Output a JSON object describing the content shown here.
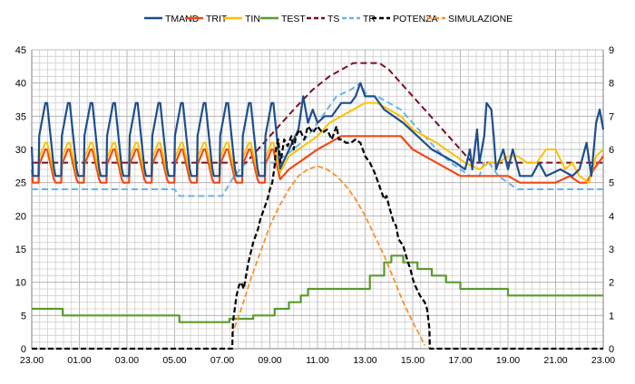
{
  "chart_data": {
    "type": "line",
    "x_ticks": [
      "23.00",
      "01.00",
      "03.00",
      "05.00",
      "07.00",
      "09.00",
      "11.00",
      "13.00",
      "15.00",
      "17.00",
      "19.00",
      "21.00",
      "23.00"
    ],
    "x_range_hours": [
      0,
      24
    ],
    "y_left": {
      "min": 0,
      "max": 45,
      "ticks": [
        "0",
        "5",
        "10",
        "15",
        "20",
        "25",
        "30",
        "35",
        "40",
        "45"
      ]
    },
    "y_right": {
      "min": 0,
      "max": 9,
      "ticks": [
        "0",
        "1",
        "2",
        "3",
        "4",
        "5",
        "6",
        "7",
        "8",
        "9"
      ]
    },
    "grid": true,
    "legend_position": "top",
    "series": [
      {
        "name": "TMAND",
        "color": "#1f4e8c",
        "dash": "none",
        "width": 2.2,
        "axis": "left",
        "style": "saw",
        "saw": {
          "lo": 26,
          "hi": 37,
          "cycle": 0.95,
          "to": 11.2
        },
        "points": [
          [
            11.2,
            33
          ],
          [
            11.4,
            38
          ],
          [
            11.6,
            34
          ],
          [
            11.8,
            36
          ],
          [
            12.0,
            34
          ],
          [
            12.3,
            35
          ],
          [
            12.6,
            35
          ],
          [
            13.0,
            37
          ],
          [
            13.4,
            37
          ],
          [
            13.6,
            38
          ],
          [
            13.8,
            40
          ],
          [
            14.0,
            38
          ],
          [
            14.4,
            38
          ],
          [
            14.8,
            36
          ],
          [
            15.2,
            35
          ],
          [
            15.6,
            34
          ],
          [
            16.2,
            32
          ],
          [
            16.8,
            30
          ],
          [
            17.3,
            29
          ],
          [
            17.8,
            28
          ],
          [
            18.2,
            27
          ],
          [
            18.4,
            30
          ],
          [
            18.5,
            27
          ],
          [
            18.7,
            33
          ],
          [
            18.8,
            28
          ],
          [
            19.0,
            32
          ],
          [
            19.1,
            37
          ],
          [
            19.3,
            36
          ],
          [
            19.4,
            32
          ],
          [
            19.5,
            27
          ],
          [
            19.8,
            30
          ],
          [
            20.0,
            27
          ],
          [
            20.2,
            30
          ],
          [
            20.5,
            26
          ],
          [
            21.0,
            26
          ],
          [
            21.3,
            28
          ],
          [
            21.6,
            26
          ],
          [
            22.2,
            27
          ],
          [
            22.7,
            26
          ],
          [
            23.0,
            27
          ],
          [
            23.3,
            31
          ],
          [
            23.5,
            26
          ],
          [
            23.7,
            34
          ],
          [
            23.85,
            36
          ],
          [
            24.0,
            33
          ]
        ]
      },
      {
        "name": "TRIT",
        "color": "#f04a17",
        "dash": "none",
        "width": 2.2,
        "axis": "left",
        "style": "saw",
        "saw": {
          "lo": 25,
          "hi": 30,
          "cycle": 0.95,
          "to": 10.8
        },
        "points": [
          [
            10.8,
            27
          ],
          [
            11.2,
            28
          ],
          [
            11.6,
            29
          ],
          [
            12.0,
            30
          ],
          [
            12.5,
            31
          ],
          [
            13.0,
            32
          ],
          [
            14.0,
            32
          ],
          [
            15.0,
            32
          ],
          [
            15.5,
            32
          ],
          [
            16.0,
            30
          ],
          [
            17.0,
            28
          ],
          [
            18.0,
            26
          ],
          [
            19.0,
            26
          ],
          [
            19.5,
            26
          ],
          [
            20.0,
            26
          ],
          [
            20.5,
            25
          ],
          [
            21.5,
            25
          ],
          [
            22.0,
            25
          ],
          [
            22.6,
            26
          ],
          [
            23.0,
            25
          ],
          [
            23.3,
            25
          ],
          [
            23.6,
            27
          ],
          [
            24.0,
            29
          ]
        ]
      },
      {
        "name": "TIN",
        "color": "#ffc000",
        "dash": "none",
        "width": 2,
        "axis": "left",
        "style": "saw",
        "saw": {
          "lo": 26,
          "hi": 31,
          "cycle": 0.95,
          "to": 10.8
        },
        "points": [
          [
            10.8,
            29
          ],
          [
            11.2,
            30
          ],
          [
            11.6,
            31
          ],
          [
            12.0,
            32
          ],
          [
            12.5,
            34
          ],
          [
            13.0,
            35
          ],
          [
            13.5,
            36
          ],
          [
            14.0,
            37
          ],
          [
            14.5,
            37
          ],
          [
            15.0,
            36
          ],
          [
            15.5,
            35
          ],
          [
            16.0,
            33
          ],
          [
            17.0,
            31
          ],
          [
            17.8,
            29
          ],
          [
            18.2,
            28
          ],
          [
            18.8,
            27
          ],
          [
            19.2,
            28
          ],
          [
            19.6,
            28
          ],
          [
            20.0,
            29
          ],
          [
            20.4,
            29
          ],
          [
            20.8,
            28
          ],
          [
            21.2,
            28
          ],
          [
            21.6,
            30
          ],
          [
            22.0,
            30
          ],
          [
            22.4,
            27
          ],
          [
            22.7,
            28
          ],
          [
            23.0,
            26
          ],
          [
            23.4,
            25
          ],
          [
            23.7,
            29
          ],
          [
            24.0,
            30
          ]
        ]
      },
      {
        "name": "TEST",
        "color": "#5b9a2f",
        "dash": "none",
        "width": 2.2,
        "axis": "left",
        "style": "step",
        "points": [
          [
            0,
            6
          ],
          [
            1.3,
            6
          ],
          [
            1.3,
            5
          ],
          [
            6.2,
            5
          ],
          [
            6.2,
            4
          ],
          [
            8.3,
            4
          ],
          [
            8.3,
            4.5
          ],
          [
            9.3,
            4.5
          ],
          [
            9.3,
            5
          ],
          [
            10.2,
            5
          ],
          [
            10.2,
            6
          ],
          [
            10.8,
            6
          ],
          [
            10.8,
            7
          ],
          [
            11.3,
            7
          ],
          [
            11.3,
            8
          ],
          [
            11.6,
            8
          ],
          [
            11.6,
            9
          ],
          [
            14.2,
            9
          ],
          [
            14.2,
            11
          ],
          [
            14.8,
            11
          ],
          [
            14.8,
            13
          ],
          [
            15.1,
            13
          ],
          [
            15.1,
            14
          ],
          [
            15.6,
            14
          ],
          [
            15.6,
            13
          ],
          [
            16.2,
            13
          ],
          [
            16.2,
            12
          ],
          [
            16.8,
            12
          ],
          [
            16.8,
            11
          ],
          [
            17.4,
            11
          ],
          [
            17.4,
            10
          ],
          [
            18.0,
            10
          ],
          [
            18.0,
            9
          ],
          [
            20.0,
            9
          ],
          [
            20.0,
            8
          ],
          [
            24.0,
            8
          ]
        ]
      },
      {
        "name": "TS",
        "color": "#7a0f22",
        "dash": "7,4",
        "width": 2,
        "axis": "left",
        "style": "line",
        "points": [
          [
            0,
            28
          ],
          [
            1,
            28
          ],
          [
            2,
            28
          ],
          [
            3,
            28
          ],
          [
            4,
            28
          ],
          [
            5,
            28
          ],
          [
            6,
            28
          ],
          [
            7,
            28
          ],
          [
            8,
            28
          ],
          [
            9,
            28
          ],
          [
            10,
            32
          ],
          [
            11,
            36
          ],
          [
            11.8,
            39
          ],
          [
            12.5,
            41
          ],
          [
            13.0,
            42
          ],
          [
            13.5,
            43
          ],
          [
            14.2,
            43
          ],
          [
            14.6,
            43
          ],
          [
            15.0,
            42
          ],
          [
            15.5,
            40
          ],
          [
            16.0,
            38
          ],
          [
            17.0,
            34
          ],
          [
            17.5,
            32
          ],
          [
            18.0,
            30
          ],
          [
            18.5,
            28
          ],
          [
            19.5,
            28
          ],
          [
            20.5,
            28
          ],
          [
            21.5,
            28
          ],
          [
            22.5,
            28
          ],
          [
            24,
            28
          ]
        ]
      },
      {
        "name": "TR",
        "color": "#6cb4e4",
        "dash": "7,4",
        "width": 2,
        "axis": "left",
        "style": "line",
        "points": [
          [
            0,
            24
          ],
          [
            2.0,
            24
          ],
          [
            4.0,
            24
          ],
          [
            6.0,
            24
          ],
          [
            6.2,
            23
          ],
          [
            8.0,
            23
          ],
          [
            8.5,
            26
          ],
          [
            9.0,
            28
          ],
          [
            9.6,
            28
          ],
          [
            10.2,
            28
          ],
          [
            11.0,
            30
          ],
          [
            11.6,
            32
          ],
          [
            12.2,
            35
          ],
          [
            12.8,
            38
          ],
          [
            13.4,
            39
          ],
          [
            13.8,
            40
          ],
          [
            14.1,
            38
          ],
          [
            14.5,
            38
          ],
          [
            15.0,
            37
          ],
          [
            15.5,
            36
          ],
          [
            16.0,
            34
          ],
          [
            16.5,
            32
          ],
          [
            17.0,
            30
          ],
          [
            17.6,
            28
          ],
          [
            18.4,
            26
          ],
          [
            18.8,
            26
          ],
          [
            19.0,
            28
          ],
          [
            19.2,
            28
          ],
          [
            19.6,
            26
          ],
          [
            20.0,
            25
          ],
          [
            20.4,
            24
          ],
          [
            21.0,
            24
          ],
          [
            22.0,
            24
          ],
          [
            24.0,
            24
          ]
        ]
      },
      {
        "name": "POTENZA",
        "color": "#000000",
        "dash": "6,3",
        "width": 2.2,
        "axis": "right",
        "style": "line",
        "points": [
          [
            0,
            0
          ],
          [
            2,
            0
          ],
          [
            4,
            0
          ],
          [
            6,
            0
          ],
          [
            8,
            0
          ],
          [
            8.42,
            0
          ],
          [
            8.45,
            0.8
          ],
          [
            8.6,
            1.6
          ],
          [
            8.7,
            1.9
          ],
          [
            8.8,
            2.0
          ],
          [
            8.9,
            1.8
          ],
          [
            9.0,
            2.2
          ],
          [
            9.1,
            2.6
          ],
          [
            9.2,
            2.9
          ],
          [
            9.3,
            3.2
          ],
          [
            9.5,
            3.6
          ],
          [
            9.6,
            3.9
          ],
          [
            9.7,
            4.1
          ],
          [
            9.8,
            4.3
          ],
          [
            9.9,
            4.5
          ],
          [
            10.0,
            4.8
          ],
          [
            10.1,
            5.0
          ],
          [
            10.2,
            5.5
          ],
          [
            10.25,
            6.0
          ],
          [
            10.35,
            6.3
          ],
          [
            10.45,
            5.6
          ],
          [
            10.6,
            6.3
          ],
          [
            10.75,
            6.1
          ],
          [
            10.9,
            6.4
          ],
          [
            11.0,
            6.0
          ],
          [
            11.1,
            6.4
          ],
          [
            11.25,
            6.6
          ],
          [
            11.45,
            6.3
          ],
          [
            11.6,
            6.7
          ],
          [
            11.8,
            6.5
          ],
          [
            12.0,
            6.7
          ],
          [
            12.2,
            6.5
          ],
          [
            12.4,
            6.6
          ],
          [
            12.6,
            6.3
          ],
          [
            12.8,
            6.7
          ],
          [
            12.9,
            6.3
          ],
          [
            13.0,
            6.3
          ],
          [
            13.2,
            6.2
          ],
          [
            13.4,
            6.2
          ],
          [
            13.6,
            6.3
          ],
          [
            13.8,
            6.2
          ],
          [
            14.0,
            5.8
          ],
          [
            14.2,
            5.6
          ],
          [
            14.4,
            5.3
          ],
          [
            14.6,
            4.9
          ],
          [
            14.8,
            4.5
          ],
          [
            14.9,
            4.6
          ],
          [
            15.0,
            4.3
          ],
          [
            15.2,
            3.8
          ],
          [
            15.3,
            3.7
          ],
          [
            15.4,
            3.3
          ],
          [
            15.6,
            3.1
          ],
          [
            15.8,
            2.6
          ],
          [
            15.9,
            2.4
          ],
          [
            16.0,
            2.1
          ],
          [
            16.1,
            1.9
          ],
          [
            16.3,
            1.6
          ],
          [
            16.5,
            1.4
          ],
          [
            16.6,
            1.2
          ],
          [
            16.7,
            0.6
          ],
          [
            16.72,
            0
          ],
          [
            17,
            0
          ],
          [
            18,
            0
          ],
          [
            20,
            0
          ],
          [
            22,
            0
          ],
          [
            24,
            0
          ]
        ]
      },
      {
        "name": "SIMULAZIONE",
        "color": "#f7922c",
        "dash": "6,3",
        "width": 1.8,
        "axis": "right",
        "style": "line",
        "points": [
          [
            8.4,
            0.4
          ],
          [
            8.8,
            1.2
          ],
          [
            9.2,
            2.1
          ],
          [
            9.6,
            2.9
          ],
          [
            10.0,
            3.7
          ],
          [
            10.4,
            4.3
          ],
          [
            10.8,
            4.8
          ],
          [
            11.2,
            5.2
          ],
          [
            11.6,
            5.4
          ],
          [
            12.0,
            5.5
          ],
          [
            12.4,
            5.4
          ],
          [
            12.8,
            5.2
          ],
          [
            13.2,
            4.9
          ],
          [
            13.6,
            4.5
          ],
          [
            14.0,
            4.0
          ],
          [
            14.4,
            3.4
          ],
          [
            14.8,
            2.8
          ],
          [
            15.2,
            2.1
          ],
          [
            15.6,
            1.4
          ],
          [
            16.0,
            0.8
          ],
          [
            16.3,
            0.4
          ],
          [
            16.5,
            0.1
          ]
        ]
      }
    ]
  }
}
